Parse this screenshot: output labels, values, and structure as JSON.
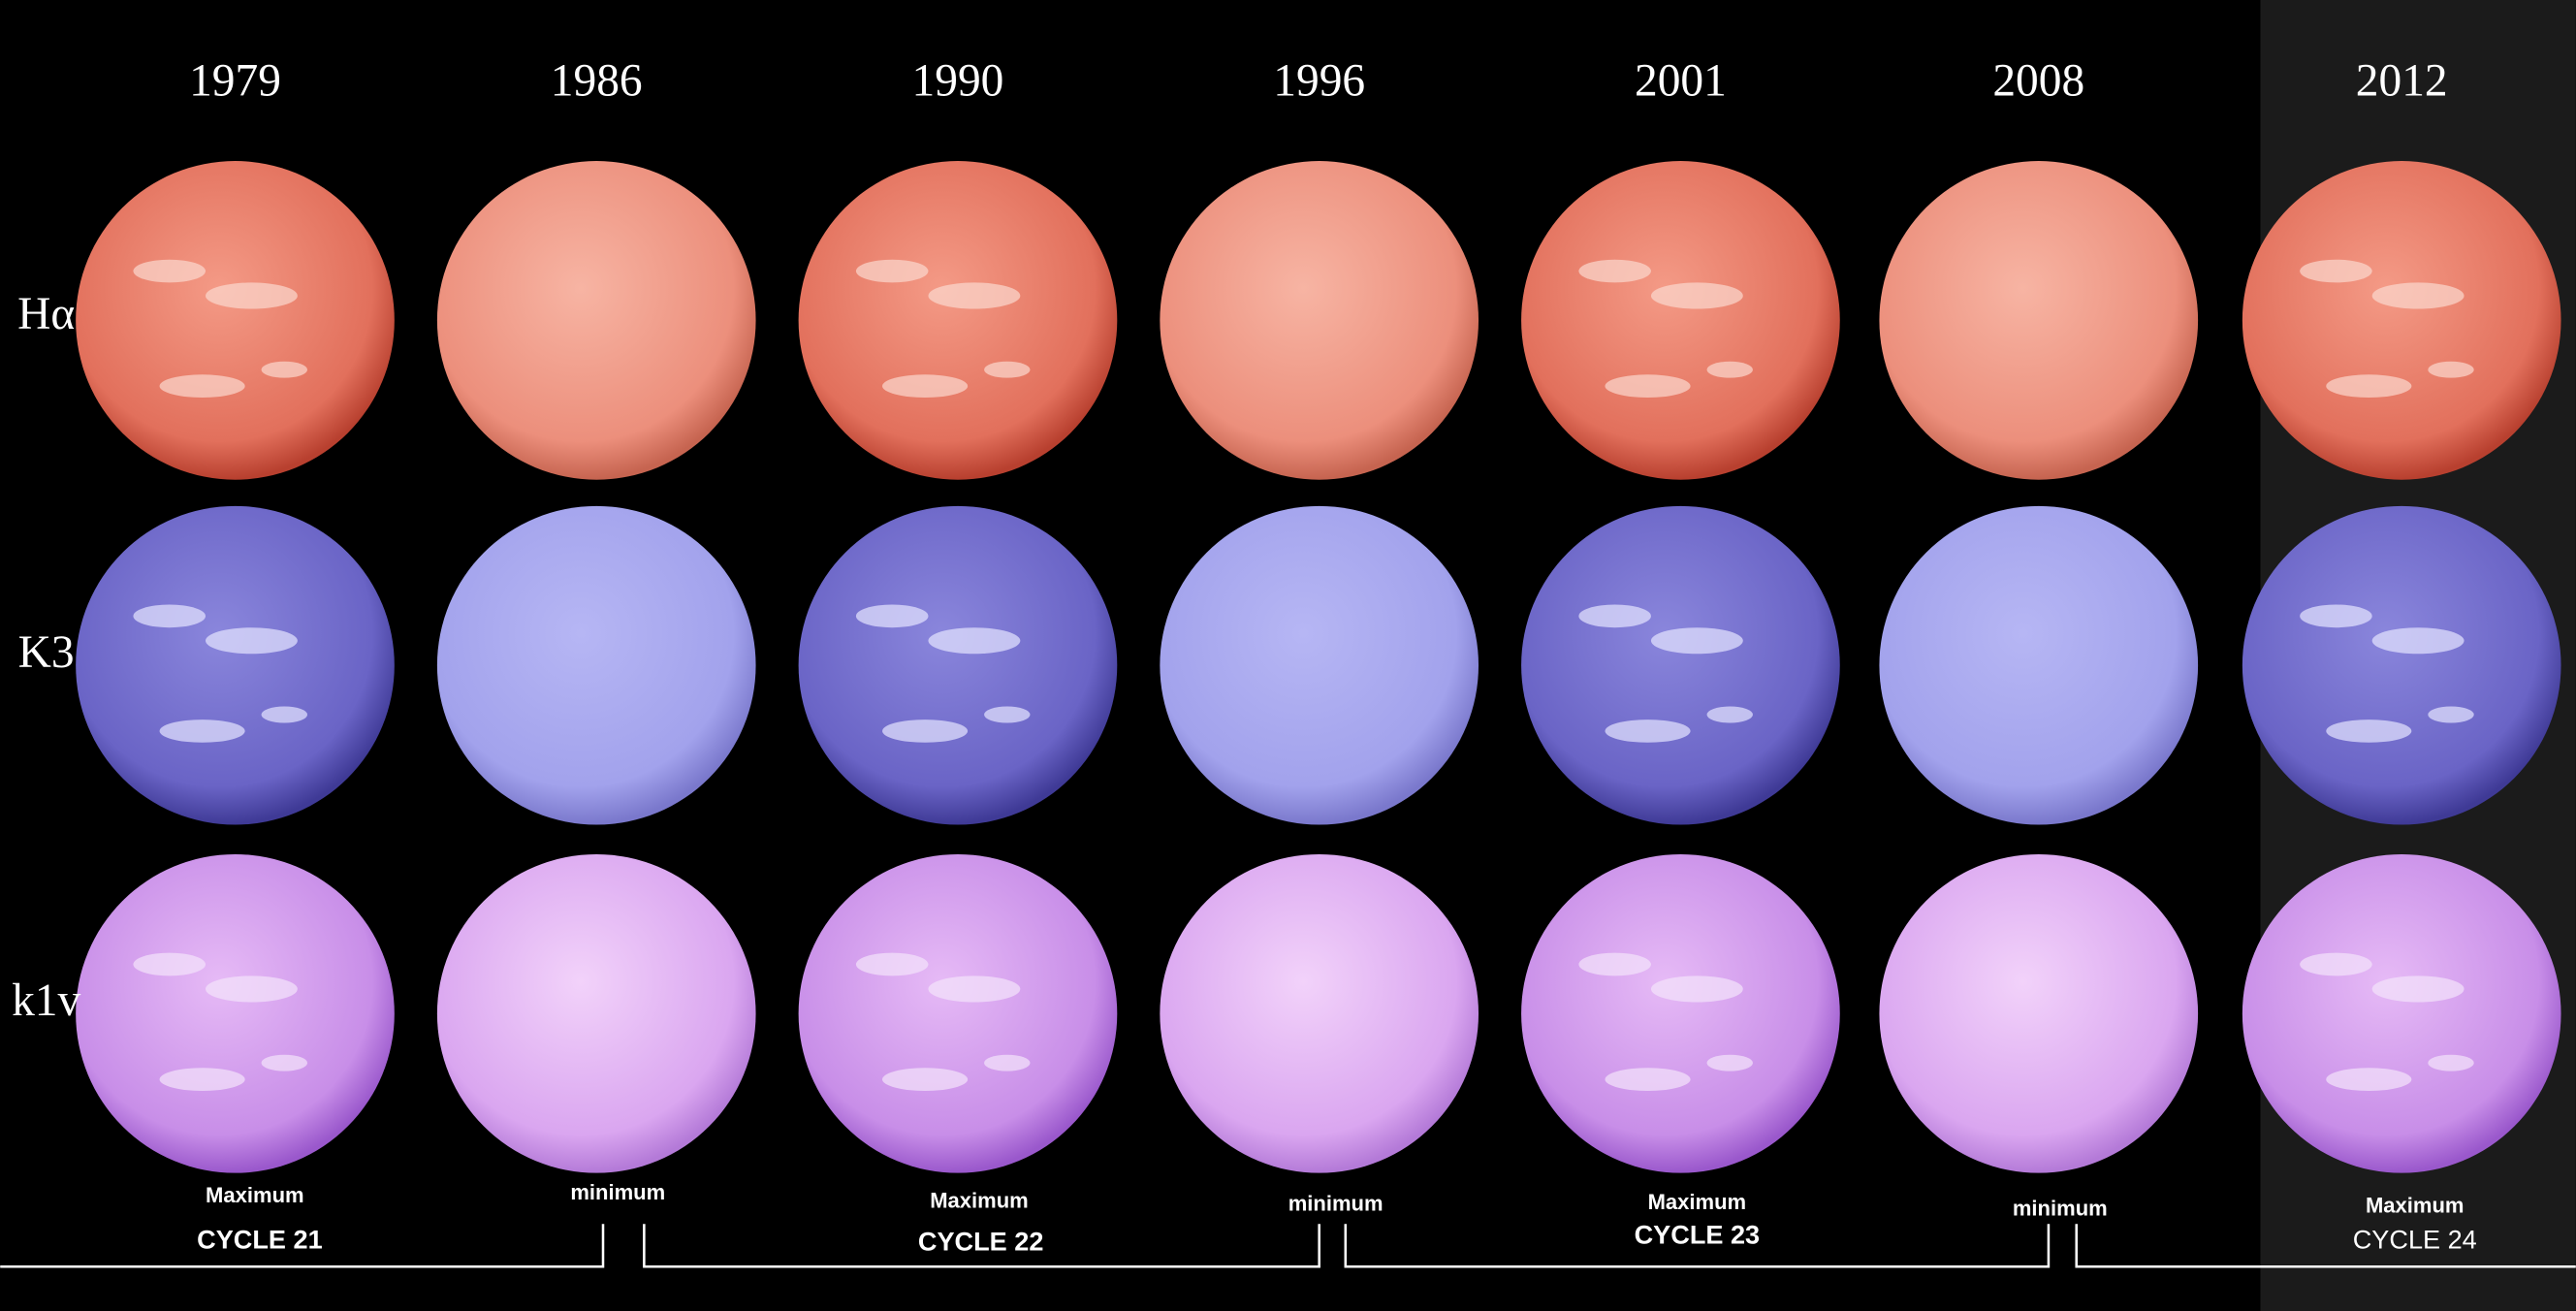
{
  "years": [
    "1979",
    "1986",
    "1990",
    "1996",
    "2001",
    "2008",
    "2012"
  ],
  "rows": [
    "Hα",
    "K3",
    "k1v"
  ],
  "phases": [
    "Maximum",
    "minimum",
    "Maximum",
    "minimum",
    "Maximum",
    "minimum",
    "Maximum"
  ],
  "cycles": [
    "CYCLE 21",
    "CYCLE 22",
    "CYCLE 23",
    "CYCLE 24"
  ]
}
